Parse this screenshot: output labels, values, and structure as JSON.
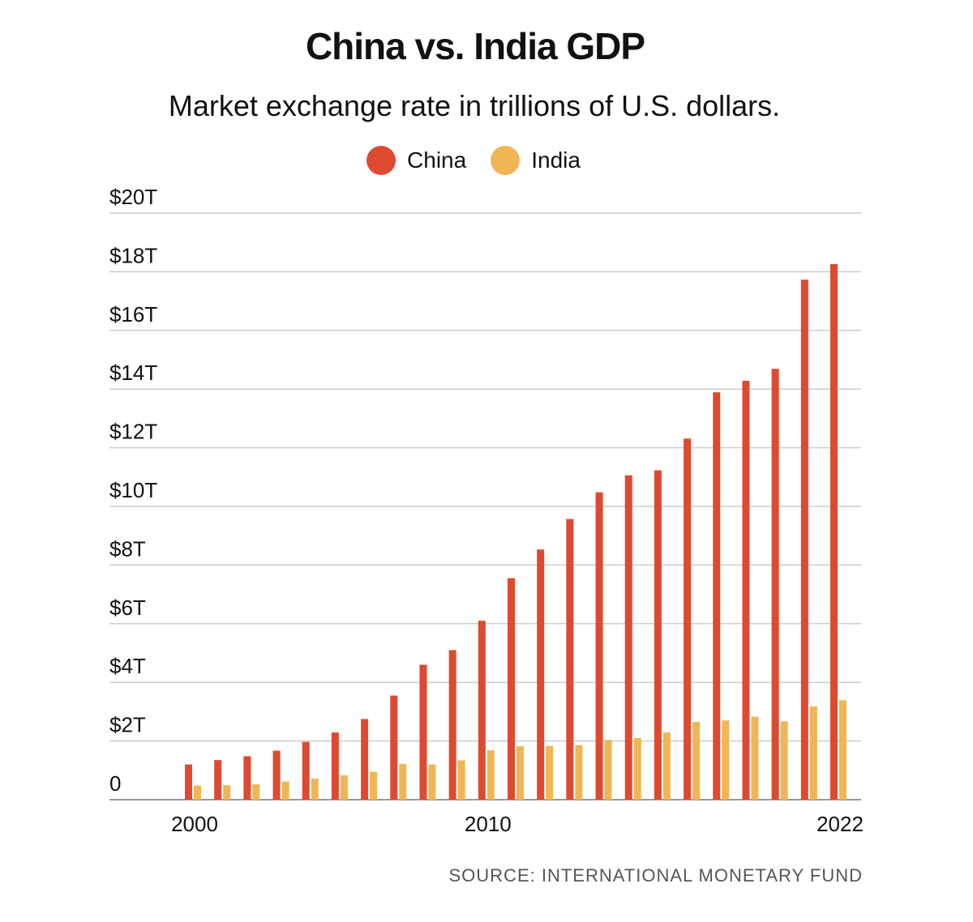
{
  "chart_data": {
    "type": "bar",
    "title": "China vs. India GDP",
    "subtitle": "Market exchange rate in trillions of U.S. dollars.",
    "x": [
      2000,
      2001,
      2002,
      2003,
      2004,
      2005,
      2006,
      2007,
      2008,
      2009,
      2010,
      2011,
      2012,
      2013,
      2014,
      2015,
      2016,
      2017,
      2018,
      2019,
      2020,
      2021,
      2022
    ],
    "x_tick_labels": [
      "2000",
      "2010",
      "2022"
    ],
    "y_tick_labels": [
      "0",
      "$2T",
      "$4T",
      "$6T",
      "$8T",
      "$10T",
      "$12T",
      "$14T",
      "$16T",
      "$18T",
      "$20T"
    ],
    "ylim": [
      0,
      20
    ],
    "grid": true,
    "legend_position": "top-center",
    "series": [
      {
        "name": "China",
        "color": "#de4a2f",
        "values": [
          1.2,
          1.35,
          1.48,
          1.67,
          1.97,
          2.29,
          2.75,
          3.55,
          4.6,
          5.1,
          6.1,
          7.55,
          8.53,
          9.57,
          10.48,
          11.06,
          11.23,
          12.31,
          13.89,
          14.28,
          14.69,
          17.73,
          18.26
        ]
      },
      {
        "name": "India",
        "color": "#f0b655",
        "values": [
          0.48,
          0.49,
          0.52,
          0.62,
          0.72,
          0.83,
          0.95,
          1.22,
          1.2,
          1.34,
          1.68,
          1.82,
          1.83,
          1.86,
          2.04,
          2.1,
          2.29,
          2.65,
          2.7,
          2.83,
          2.67,
          3.18,
          3.39
        ]
      }
    ]
  },
  "source": "SOURCE: INTERNATIONAL MONETARY FUND"
}
